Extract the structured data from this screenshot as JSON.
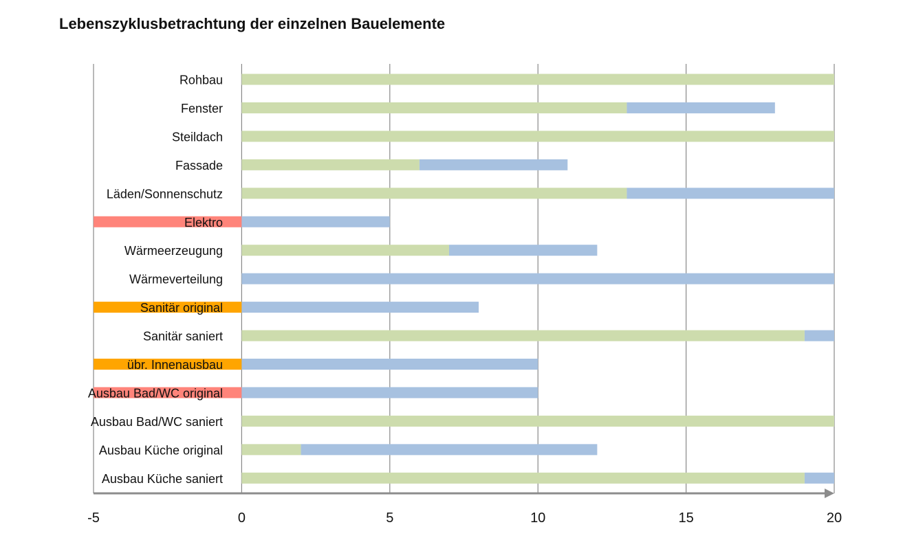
{
  "chart_data": {
    "type": "bar",
    "orientation": "horizontal",
    "stacked": true,
    "title": "Lebenszyklusbetrachtung der einzelnen Bauelemente",
    "xlabel": "",
    "ylabel": "",
    "xlim": [
      -5,
      20
    ],
    "xticks": [
      -5,
      0,
      5,
      10,
      15,
      20
    ],
    "grid": true,
    "legend": "none",
    "colors": {
      "green": "#cddcad",
      "blue": "#a7c1e0",
      "red": "#ff847a",
      "orange": "#ffa500",
      "grid": "#888888",
      "axis": "#8c8c8c"
    },
    "categories": [
      "Rohbau",
      "Fenster",
      "Steildach",
      "Fassade",
      "Läden/Sonnenschutz",
      "Elektro",
      "Wärmeerzeugung",
      "Wärmeverteilung",
      "Sanitär original",
      "Sanitär saniert",
      "übr. Innenausbau",
      "Ausbau Bad/WC original",
      "Ausbau Bad/WC saniert",
      "Ausbau Küche original",
      "Ausbau Küche saniert"
    ],
    "rows": [
      {
        "label": "Rohbau",
        "highlight": null,
        "highlight_start": null,
        "green": 20,
        "blue": 0
      },
      {
        "label": "Fenster",
        "highlight": null,
        "highlight_start": null,
        "green": 13,
        "blue": 5
      },
      {
        "label": "Steildach",
        "highlight": null,
        "highlight_start": null,
        "green": 20,
        "blue": 0
      },
      {
        "label": "Fassade",
        "highlight": null,
        "highlight_start": null,
        "green": 6,
        "blue": 5
      },
      {
        "label": "Läden/Sonnenschutz",
        "highlight": null,
        "highlight_start": null,
        "green": 13,
        "blue": 7
      },
      {
        "label": "Elektro",
        "highlight": "red",
        "highlight_start": -5,
        "green": 0,
        "blue": 5
      },
      {
        "label": "Wärmeerzeugung",
        "highlight": null,
        "highlight_start": null,
        "green": 7,
        "blue": 5
      },
      {
        "label": "Wärmeverteilung",
        "highlight": null,
        "highlight_start": null,
        "green": 0,
        "blue": 20
      },
      {
        "label": "Sanitär original",
        "highlight": "orange",
        "highlight_start": -5,
        "green": 0,
        "blue": 8
      },
      {
        "label": "Sanitär saniert",
        "highlight": null,
        "highlight_start": null,
        "green": 19,
        "blue": 1
      },
      {
        "label": "übr. Innenausbau",
        "highlight": "orange",
        "highlight_start": -5,
        "green": 0,
        "blue": 10
      },
      {
        "label": "Ausbau Bad/WC original",
        "highlight": "red",
        "highlight_start": -5,
        "green": 0,
        "blue": 10
      },
      {
        "label": "Ausbau Bad/WC saniert",
        "highlight": null,
        "highlight_start": null,
        "green": 20,
        "blue": 0
      },
      {
        "label": "Ausbau Küche original",
        "highlight": null,
        "highlight_start": null,
        "green": 2,
        "blue": 10
      },
      {
        "label": "Ausbau Küche saniert",
        "highlight": null,
        "highlight_start": null,
        "green": 19,
        "blue": 1
      }
    ]
  }
}
